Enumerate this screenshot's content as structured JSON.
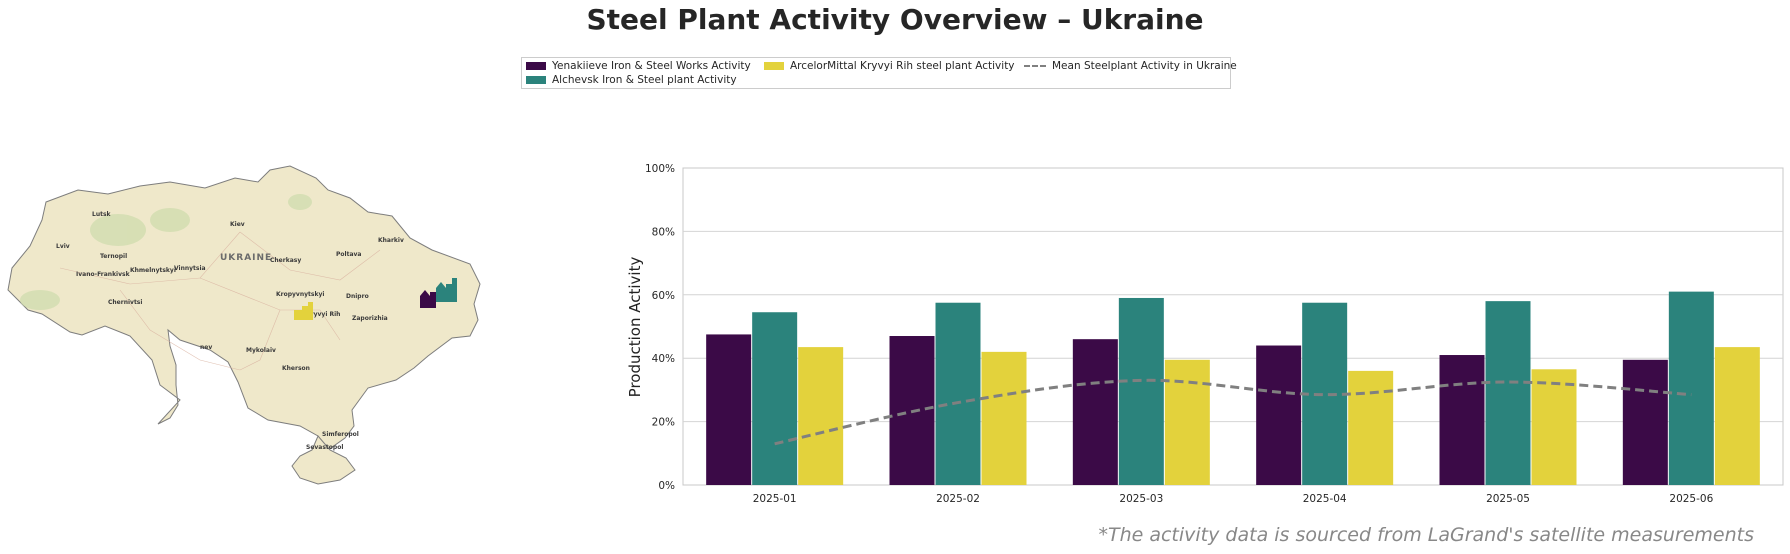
{
  "title": "Steel Plant Activity Overview – Ukraine",
  "footnote": "*The activity data is sourced from LaGrand's satellite measurements",
  "legend": {
    "items": [
      {
        "label": "Yenakiieve Iron & Steel Works Activity",
        "color": "#3b0a47"
      },
      {
        "label": "Alchevsk Iron & Steel plant Activity",
        "color": "#2b837c"
      },
      {
        "label": "ArcelorMittal Kryvyi Rih steel plant Activity",
        "color": "#e3d23c"
      },
      {
        "label": "Mean Steelplant Activity in Ukraine",
        "color": "#808080"
      }
    ]
  },
  "map": {
    "country_label": "UKRAINE",
    "cities": [
      "Lutsk",
      "Kiev",
      "Kharkiv",
      "Lviv",
      "Ternopil",
      "Khmelnytskyi",
      "Vinnytsia",
      "Cherkasy",
      "Poltava",
      "Ivano-Frankivsk",
      "Chernivtsi",
      "Kropyvnytskyi",
      "Dnipro",
      "Kryvyi Rih",
      "Zaporizhia",
      "Mykolaiv",
      "Kherson",
      "Simferopol",
      "Sevastopol",
      "nev"
    ]
  },
  "chart_data": {
    "type": "bar",
    "categories": [
      "2025-01",
      "2025-02",
      "2025-03",
      "2025-04",
      "2025-05",
      "2025-06"
    ],
    "series": [
      {
        "name": "Yenakiieve Iron & Steel Works Activity",
        "values": [
          47.5,
          47,
          46,
          44,
          41,
          39.5
        ],
        "color": "#3b0a47"
      },
      {
        "name": "Alchevsk Iron & Steel plant Activity",
        "values": [
          54.5,
          57.5,
          59,
          57.5,
          58,
          61
        ],
        "color": "#2b837c"
      },
      {
        "name": "ArcelorMittal Kryvyi Rih steel plant Activity",
        "values": [
          43.5,
          42,
          39.5,
          36,
          36.5,
          43.5
        ],
        "color": "#e3d23c"
      }
    ],
    "line": {
      "name": "Mean Steelplant Activity in Ukraine",
      "values": [
        13,
        26,
        33,
        28.5,
        32.5,
        28.5
      ],
      "color": "#808080",
      "style": "dashed"
    },
    "ylabel": "Production Activity",
    "xlabel": "",
    "ylim": [
      0,
      100
    ],
    "yticks": [
      "0%",
      "20%",
      "40%",
      "60%",
      "80%",
      "100%"
    ],
    "grid": true
  }
}
